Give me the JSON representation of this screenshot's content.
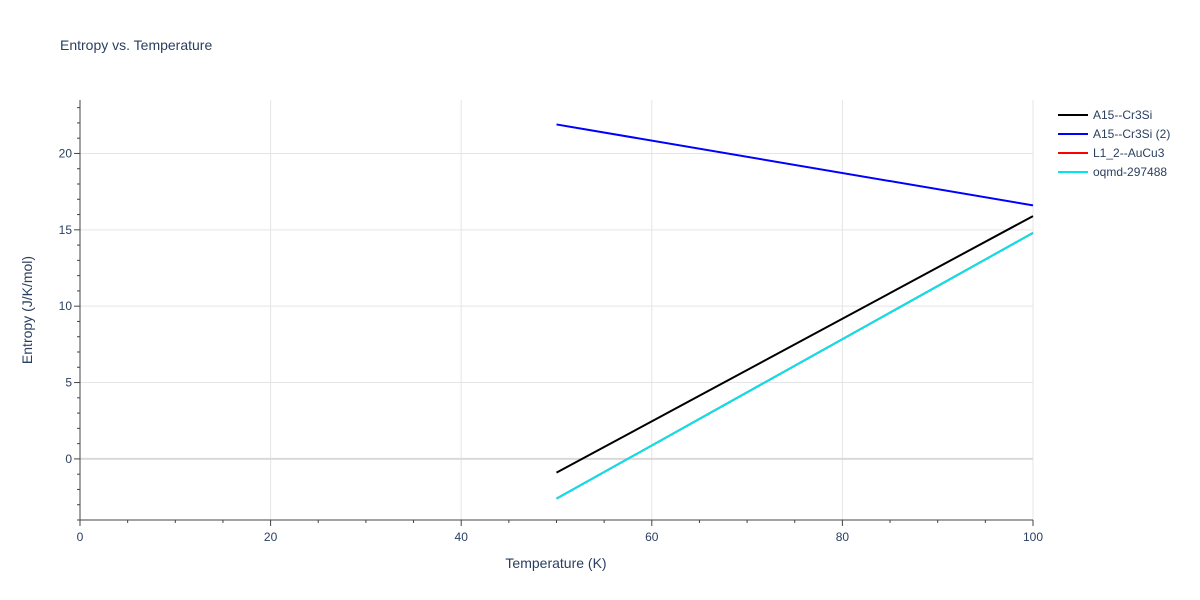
{
  "chart_data": {
    "type": "line",
    "title": "Entropy vs. Temperature",
    "xlabel": "Temperature (K)",
    "ylabel": "Entropy (J/K/mol)",
    "xlim": [
      0,
      100
    ],
    "ylim": [
      -4,
      23.5
    ],
    "x_ticks": [
      0,
      20,
      40,
      60,
      80,
      100
    ],
    "y_ticks": [
      0,
      5,
      10,
      15,
      20
    ],
    "grid": true,
    "legend_position": "top-right",
    "series": [
      {
        "name": "A15--Cr3Si",
        "color": "#000000",
        "x": [
          50,
          100
        ],
        "y": [
          -0.9,
          15.9
        ]
      },
      {
        "name": "A15--Cr3Si (2)",
        "color": "#0000ff",
        "x": [
          50,
          100
        ],
        "y": [
          21.9,
          16.6
        ]
      },
      {
        "name": "L1_2--AuCu3",
        "color": "#ff0000",
        "x": [
          50,
          100
        ],
        "y": [
          -2.6,
          14.8
        ]
      },
      {
        "name": "oqmd-297488",
        "color": "#00e5ee",
        "x": [
          50,
          100
        ],
        "y": [
          -2.6,
          14.8
        ]
      }
    ]
  }
}
